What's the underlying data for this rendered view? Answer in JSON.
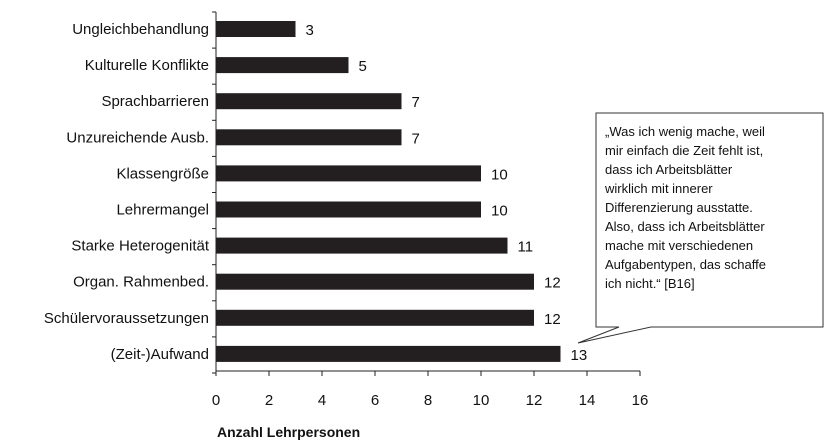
{
  "chart_data": {
    "type": "bar",
    "orientation": "horizontal",
    "categories": [
      "Ungleichbehandlung",
      "Kulturelle Konflikte",
      "Sprachbarrieren",
      "Unzureichende Ausb.",
      "Klassengröße",
      "Lehrermangel",
      "Starke Heterogenität",
      "Organ. Rahmenbed.",
      "Schülervoraussetzungen",
      "(Zeit-)Aufwand"
    ],
    "values": [
      3,
      5,
      7,
      7,
      10,
      10,
      11,
      12,
      12,
      13
    ],
    "value_labels": [
      "3",
      "5",
      "7",
      "7",
      "10",
      "10",
      "11",
      "12",
      "12",
      "13"
    ],
    "xlabel": "Anzahl Lehrpersonen",
    "xlim": [
      0,
      16
    ],
    "xticks": [
      0,
      2,
      4,
      6,
      8,
      10,
      12,
      14,
      16
    ],
    "xtick_labels": [
      "0",
      "2",
      "4",
      "6",
      "8",
      "10",
      "12",
      "14",
      "16"
    ],
    "bar_color": "#231f20",
    "grid": false,
    "legend": "none",
    "annotations": [
      {
        "target_category": "(Zeit-)Aufwand",
        "lines": [
          "„Was ich wenig mache, weil",
          "mir einfach die Zeit fehlt ist,",
          "dass ich Arbeitsblätter",
          "wirklich mit innerer",
          "Differenzierung ausstatte.",
          "Also, dass ich Arbeitsblätter",
          "mache mit verschiedenen",
          "Aufgabentypen,  das schaffe",
          "ich nicht.“ [B16]"
        ]
      }
    ]
  }
}
